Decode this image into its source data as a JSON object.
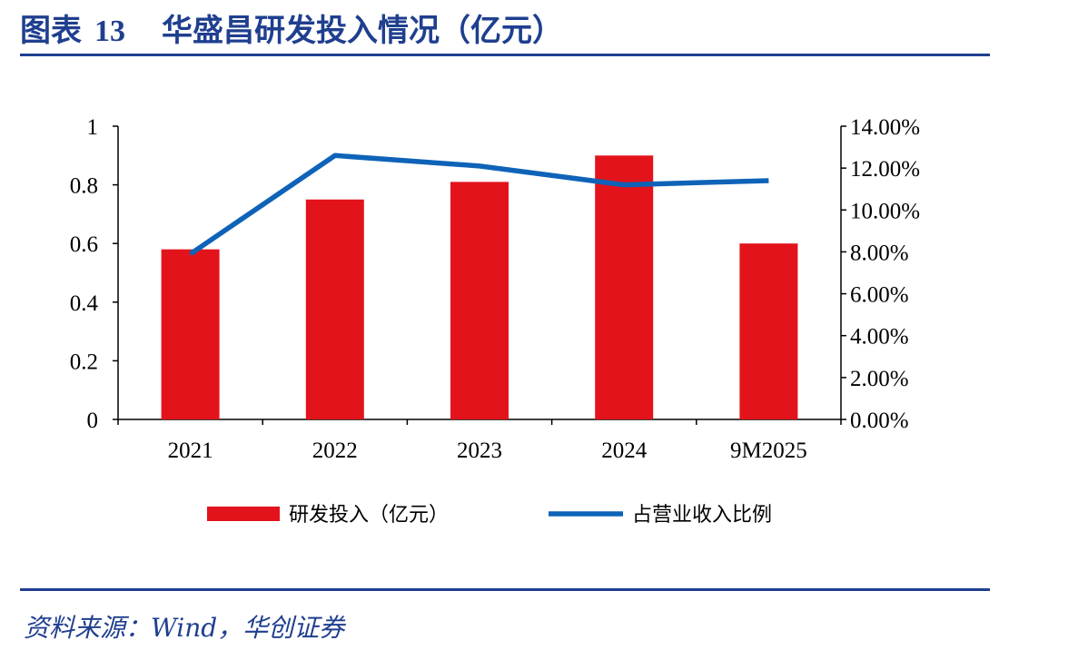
{
  "header": {
    "figure_label": "图表",
    "figure_number": "13",
    "title": "华盛昌研发投入情况（亿元）"
  },
  "footer": {
    "source": "资料来源：Wind，华创证券"
  },
  "colors": {
    "bar": "#e3131b",
    "line": "#0e63b8",
    "brand": "#1f3f8f"
  },
  "chart_data": {
    "type": "bar",
    "title": "华盛昌研发投入情况（亿元）",
    "categories": [
      "2021",
      "2022",
      "2023",
      "2024",
      "9M2025"
    ],
    "series": [
      {
        "name": "研发投入（亿元）",
        "type": "bar",
        "axis": "left",
        "values": [
          0.58,
          0.75,
          0.81,
          0.9,
          0.6
        ]
      },
      {
        "name": "占营业收入比例",
        "type": "line",
        "axis": "right",
        "values": [
          7.9,
          12.6,
          12.1,
          11.2,
          11.4
        ]
      }
    ],
    "ylim_left": [
      0,
      1
    ],
    "yticks_left": [
      "0",
      "0.2",
      "0.4",
      "0.6",
      "0.8",
      "1"
    ],
    "ylim_right": [
      0,
      14
    ],
    "yticks_right": [
      "0.00%",
      "2.00%",
      "4.00%",
      "6.00%",
      "8.00%",
      "10.00%",
      "12.00%",
      "14.00%"
    ],
    "legend_position": "bottom",
    "grid": false
  }
}
